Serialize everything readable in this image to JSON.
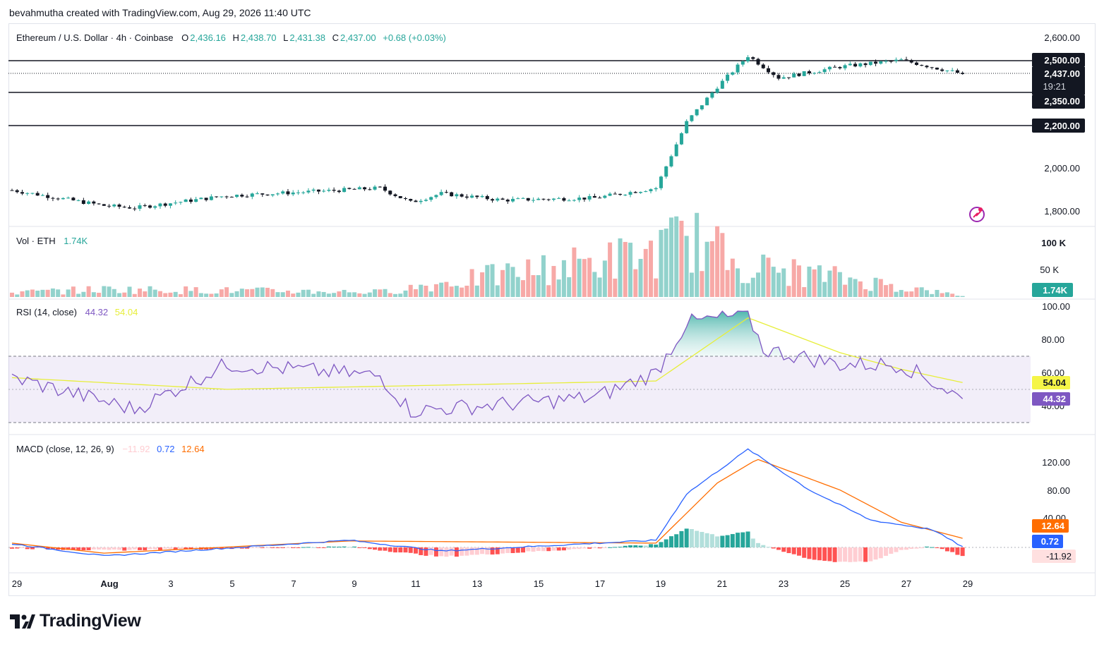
{
  "header": {
    "text": "bevahmutha created with TradingView.com, Aug 29, 2026 11:40 UTC"
  },
  "price_legend": {
    "symbol": "Ethereum / U.S. Dollar · 4h · Coinbase",
    "o_label": "O",
    "o_value": "2,436.16",
    "h_label": "H",
    "h_value": "2,438.70",
    "l_label": "L",
    "l_value": "2,431.38",
    "c_label": "C",
    "c_value": "2,437.00",
    "change": "+0.68 (+0.03%)"
  },
  "volume_legend": {
    "label": "Vol · ETH",
    "value": "1.74K"
  },
  "rsi_legend": {
    "label": "RSI (14, close)",
    "rsi_value": "44.32",
    "ma_value": "54.04"
  },
  "macd_legend": {
    "label": "MACD (close, 12, 26, 9)",
    "hist_value": "−11.92",
    "macd_value": "0.72",
    "signal_value": "12.64"
  },
  "price_axis": {
    "ticks": [
      "2,600.00",
      "2,000.00",
      "1,800.00"
    ],
    "level_labels": [
      "2,500.00",
      "2,350.00",
      "2,200.00"
    ],
    "current_price": "2,437.00",
    "countdown": "19:21"
  },
  "volume_axis": {
    "ticks": [
      "100 K",
      "50 K"
    ],
    "current": "1.74K"
  },
  "rsi_axis": {
    "ticks": [
      "100.00",
      "80.00",
      "60.00",
      "40.00"
    ],
    "ma_badge": "54.04",
    "rsi_badge": "44.32"
  },
  "macd_axis": {
    "ticks": [
      "120.00",
      "80.00",
      "40.00"
    ],
    "signal_badge": "12.64",
    "macd_badge": "0.72",
    "hist_badge": "-11.92"
  },
  "time_axis": [
    "29",
    "Aug",
    "3",
    "5",
    "7",
    "9",
    "11",
    "13",
    "15",
    "17",
    "19",
    "21",
    "23",
    "25",
    "27",
    "29"
  ],
  "footer": {
    "logo_text": "TradingView"
  },
  "colors": {
    "up": "#26a69a",
    "down": "#131722",
    "vol_up": "#92d2cc",
    "vol_down": "#f7a9a7",
    "rsi": "#7e57c2",
    "rsi_ma": "#e7ee3a",
    "macd": "#2962ff",
    "signal": "#ff6d00",
    "hist_up_strong": "#26a69a",
    "hist_up_weak": "#b2dfdb",
    "hist_down_strong": "#ff5252",
    "hist_down_weak": "#ffcdd2"
  },
  "chart_data": [
    {
      "type": "candlestick",
      "title": "Ethereum / U.S. Dollar · 4h · Coinbase",
      "ylim": [
        1740,
        2640
      ],
      "horizontal_levels": [
        2500,
        2350,
        2200
      ],
      "current_price": 2437.0,
      "keypoints": [
        {
          "date": "Jul 29",
          "close": 1910
        },
        {
          "date": "Aug 1",
          "close": 1840
        },
        {
          "date": "Aug 2",
          "close": 1830
        },
        {
          "date": "Aug 5",
          "close": 1885
        },
        {
          "date": "Aug 8",
          "close": 1905
        },
        {
          "date": "Aug 10",
          "close": 1920
        },
        {
          "date": "Aug 11",
          "close": 1855
        },
        {
          "date": "Aug 12",
          "close": 1895
        },
        {
          "date": "Aug 14",
          "close": 1865
        },
        {
          "date": "Aug 17",
          "close": 1875
        },
        {
          "date": "Aug 19",
          "close": 1920
        },
        {
          "date": "Aug 20",
          "close": 2220
        },
        {
          "date": "Aug 21",
          "close": 2380
        },
        {
          "date": "Aug 22",
          "close": 2520
        },
        {
          "date": "Aug 23",
          "close": 2420
        },
        {
          "date": "Aug 25",
          "close": 2470
        },
        {
          "date": "Aug 27",
          "close": 2500
        },
        {
          "date": "Aug 29",
          "close": 2437
        }
      ]
    },
    {
      "type": "bar",
      "title": "Vol · ETH",
      "ylim": [
        0,
        120000
      ],
      "keypoints": [
        {
          "date": "Jul 29",
          "volume": 8000
        },
        {
          "date": "Aug 1",
          "volume": 14000
        },
        {
          "date": "Aug 10",
          "volume": 9000
        },
        {
          "date": "Aug 19",
          "volume": 80000
        },
        {
          "date": "Aug 20",
          "volume": 110000
        },
        {
          "date": "Aug 22",
          "volume": 55000
        },
        {
          "date": "Aug 25",
          "volume": 35000
        },
        {
          "date": "Aug 29",
          "volume": 1740
        }
      ]
    },
    {
      "type": "line",
      "title": "RSI (14, close)",
      "ylim": [
        30,
        100
      ],
      "bands": [
        30,
        50,
        70
      ],
      "series": [
        {
          "name": "RSI",
          "keypoints": [
            {
              "date": "Jul 29",
              "value": 57
            },
            {
              "date": "Aug 2",
              "value": 38
            },
            {
              "date": "Aug 5",
              "value": 65
            },
            {
              "date": "Aug 10",
              "value": 58
            },
            {
              "date": "Aug 11",
              "value": 37
            },
            {
              "date": "Aug 17",
              "value": 45
            },
            {
              "date": "Aug 19",
              "value": 60
            },
            {
              "date": "Aug 20",
              "value": 90
            },
            {
              "date": "Aug 22",
              "value": 95
            },
            {
              "date": "Aug 22.5",
              "value": 74
            },
            {
              "date": "Aug 25",
              "value": 65
            },
            {
              "date": "Aug 27",
              "value": 65
            },
            {
              "date": "Aug 29",
              "value": 44.32
            }
          ]
        },
        {
          "name": "RSI-based MA",
          "keypoints": [
            {
              "date": "Jul 29",
              "value": 57
            },
            {
              "date": "Aug 5",
              "value": 50
            },
            {
              "date": "Aug 19",
              "value": 55
            },
            {
              "date": "Aug 22",
              "value": 93
            },
            {
              "date": "Aug 25",
              "value": 72
            },
            {
              "date": "Aug 27",
              "value": 62
            },
            {
              "date": "Aug 29",
              "value": 54.04
            }
          ]
        }
      ]
    },
    {
      "type": "line",
      "title": "MACD (close, 12, 26, 9)",
      "ylim": [
        -25,
        140
      ],
      "series": [
        {
          "name": "MACD",
          "keypoints": [
            {
              "date": "Jul 29",
              "value": 5
            },
            {
              "date": "Aug 1",
              "value": -12
            },
            {
              "date": "Aug 9",
              "value": 10
            },
            {
              "date": "Aug 12",
              "value": -5
            },
            {
              "date": "Aug 19",
              "value": 10
            },
            {
              "date": "Aug 20",
              "value": 75
            },
            {
              "date": "Aug 22",
              "value": 137
            },
            {
              "date": "Aug 24",
              "value": 80
            },
            {
              "date": "Aug 26",
              "value": 38
            },
            {
              "date": "Aug 28",
              "value": 25
            },
            {
              "date": "Aug 29",
              "value": 0.72
            }
          ]
        },
        {
          "name": "Signal",
          "keypoints": [
            {
              "date": "Jul 29",
              "value": 6
            },
            {
              "date": "Aug 1",
              "value": -8
            },
            {
              "date": "Aug 9",
              "value": 9
            },
            {
              "date": "Aug 19",
              "value": 6
            },
            {
              "date": "Aug 21",
              "value": 90
            },
            {
              "date": "Aug 22.3",
              "value": 123
            },
            {
              "date": "Aug 25",
              "value": 80
            },
            {
              "date": "Aug 27",
              "value": 35
            },
            {
              "date": "Aug 29",
              "value": 12.64
            }
          ]
        },
        {
          "name": "Histogram",
          "keypoints": [
            {
              "date": "Aug 20",
              "value": 42
            },
            {
              "date": "Aug 22",
              "value": 20
            },
            {
              "date": "Aug 23",
              "value": -18
            },
            {
              "date": "Aug 29",
              "value": -11.92
            }
          ]
        }
      ]
    }
  ]
}
